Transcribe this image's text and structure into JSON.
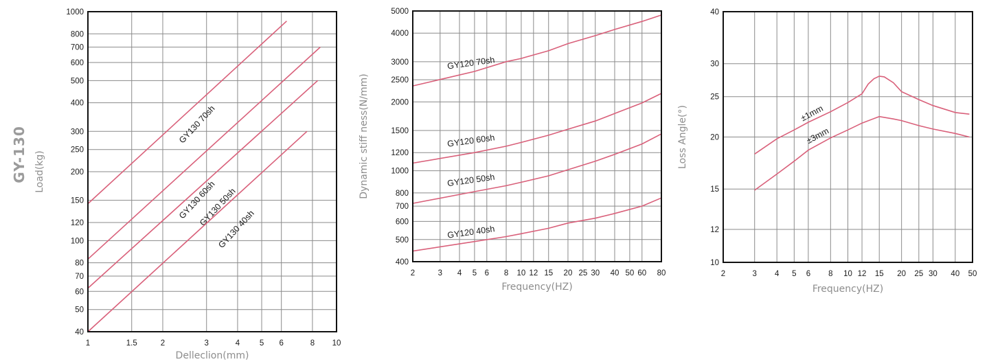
{
  "side_title": "GY-130",
  "chart_data": [
    {
      "type": "line",
      "xscale": "log",
      "yscale": "log",
      "xlabel": "Delleclion(mm)",
      "ylabel": "Load(kg)",
      "xlim": [
        1,
        10
      ],
      "ylim": [
        40,
        1000
      ],
      "xticks": [
        1,
        1.5,
        2,
        3,
        4,
        5,
        6,
        8,
        10
      ],
      "xtick_labels": [
        "1",
        "1.5",
        "2",
        "3",
        "4",
        "5",
        "6",
        "8",
        "10"
      ],
      "yticks": [
        40,
        50,
        60,
        70,
        80,
        100,
        120,
        150,
        200,
        250,
        300,
        400,
        500,
        600,
        700,
        800,
        1000
      ],
      "ytick_labels": [
        "40",
        "50",
        "60",
        "70",
        "80",
        "100",
        "120",
        "150",
        "200",
        "250",
        "300",
        "400",
        "500",
        "600",
        "700",
        "800",
        "1000"
      ],
      "grid": true,
      "series": [
        {
          "name": "GY130 70sh",
          "x": [
            1,
            6.3
          ],
          "y": [
            145,
            910
          ],
          "label_at": [
            2.85,
            310
          ]
        },
        {
          "name": "GY130 60sh",
          "x": [
            1,
            8.6
          ],
          "y": [
            83,
            700
          ],
          "label_at": [
            2.85,
            145
          ]
        },
        {
          "name": "GY130 50sh",
          "x": [
            1,
            8.4
          ],
          "y": [
            62,
            500
          ],
          "label_at": [
            3.45,
            135
          ]
        },
        {
          "name": "GY130 40sh",
          "x": [
            1,
            7.6
          ],
          "y": [
            40,
            300
          ],
          "label_at": [
            4.1,
            108
          ]
        }
      ]
    },
    {
      "type": "line",
      "xscale": "log",
      "yscale": "log",
      "xlabel": "Frequency(HZ)",
      "ylabel": "Dynamic stiff ness(N/mm)",
      "xlim": [
        2,
        80
      ],
      "ylim": [
        400,
        5000
      ],
      "xticks": [
        2,
        3,
        4,
        5,
        6,
        8,
        10,
        12,
        15,
        20,
        25,
        30,
        40,
        50,
        60,
        80
      ],
      "xtick_labels": [
        "2",
        "3",
        "4",
        "5",
        "6",
        "8",
        "10",
        "12",
        "15",
        "20",
        "25",
        "30",
        "40",
        "50",
        "60",
        "80"
      ],
      "yticks": [
        400,
        500,
        600,
        700,
        800,
        1000,
        1200,
        1500,
        2000,
        2500,
        3000,
        4000,
        5000
      ],
      "ytick_labels": [
        "400",
        "500",
        "600",
        "700",
        "800",
        "1000",
        "1200",
        "1500",
        "2000",
        "2500",
        "3000",
        "4000",
        "5000"
      ],
      "grid": true,
      "series": [
        {
          "name": "GY120 70sh",
          "x": [
            2,
            5,
            8,
            10,
            15,
            20,
            30,
            40,
            60,
            80
          ],
          "y": [
            2350,
            2720,
            3000,
            3100,
            3350,
            3600,
            3900,
            4150,
            4500,
            4800
          ],
          "label_at": [
            4.8,
            2800
          ]
        },
        {
          "name": "GY120 60sh",
          "x": [
            2,
            5,
            8,
            10,
            15,
            20,
            30,
            40,
            60,
            80
          ],
          "y": [
            1080,
            1200,
            1280,
            1330,
            1430,
            1520,
            1650,
            1780,
            1980,
            2180
          ],
          "label_at": [
            4.8,
            1280
          ]
        },
        {
          "name": "GY120 50sh",
          "x": [
            2,
            5,
            8,
            10,
            15,
            20,
            30,
            40,
            60,
            80
          ],
          "y": [
            720,
            810,
            860,
            890,
            950,
            1010,
            1100,
            1180,
            1310,
            1450
          ],
          "label_at": [
            4.8,
            860
          ]
        },
        {
          "name": "GY120 40sh",
          "x": [
            2,
            5,
            8,
            10,
            15,
            20,
            30,
            40,
            60,
            80
          ],
          "y": [
            445,
            490,
            515,
            530,
            560,
            590,
            620,
            650,
            700,
            760
          ],
          "label_at": [
            4.8,
            510
          ]
        }
      ]
    },
    {
      "type": "line",
      "xscale": "log",
      "yscale": "log",
      "xlabel": "Frequency(HZ)",
      "ylabel": "Loss Angle(°)",
      "xlim": [
        2,
        50
      ],
      "ylim": [
        10,
        40
      ],
      "xticks": [
        2,
        3,
        4,
        5,
        6,
        8,
        10,
        12,
        15,
        20,
        25,
        30,
        40,
        50
      ],
      "xtick_labels": [
        "2",
        "3",
        "4",
        "5",
        "6",
        "8",
        "10",
        "12",
        "15",
        "20",
        "25",
        "30",
        "40",
        "50"
      ],
      "yticks": [
        10,
        12,
        15,
        20,
        25,
        30,
        40
      ],
      "ytick_labels": [
        "10",
        "12",
        "15",
        "20",
        "25",
        "30",
        "40"
      ],
      "grid": true,
      "series": [
        {
          "name": "±1mm",
          "x": [
            3,
            4,
            5,
            6,
            8,
            10,
            12,
            13,
            14,
            15,
            16,
            18,
            20,
            25,
            30,
            40,
            48
          ],
          "y": [
            18.2,
            19.8,
            20.8,
            21.7,
            23.0,
            24.2,
            25.4,
            26.8,
            27.6,
            28.0,
            27.9,
            27.0,
            25.7,
            24.6,
            23.8,
            22.9,
            22.7
          ],
          "label_at": [
            6.5,
            22.2
          ]
        },
        {
          "name": "±3mm",
          "x": [
            3,
            4,
            5,
            6,
            8,
            10,
            12,
            15,
            18,
            20,
            25,
            30,
            40,
            48
          ],
          "y": [
            14.9,
            16.3,
            17.5,
            18.6,
            19.9,
            20.8,
            21.6,
            22.4,
            22.1,
            21.9,
            21.3,
            20.9,
            20.4,
            20.0
          ],
          "label_at": [
            7.0,
            19.6
          ]
        }
      ]
    }
  ]
}
